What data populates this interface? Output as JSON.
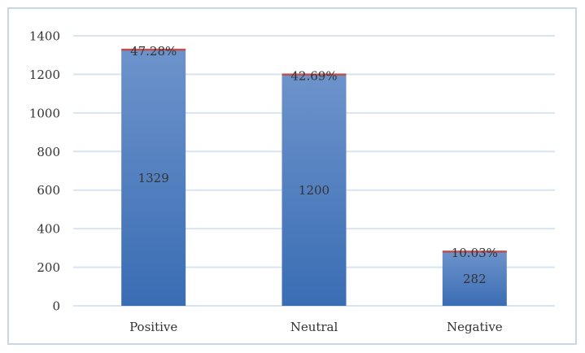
{
  "chart_data": {
    "type": "bar",
    "categories": [
      "Positive",
      "Neutral",
      "Negative"
    ],
    "series": [
      {
        "values": [
          1329,
          1200,
          282
        ],
        "percent_labels": [
          "47.28%",
          "42.69%",
          "10.03%"
        ]
      }
    ],
    "ylim": [
      0,
      1400
    ],
    "yticks": [
      0,
      200,
      400,
      600,
      800,
      1000,
      1200,
      1400
    ],
    "grid": true,
    "legend": "none",
    "colors": {
      "bar_top": "#6d93cb",
      "bar_bottom": "#3a6db4",
      "cap": "#c0504d",
      "grid": "#d9e4f1",
      "text": "#333333"
    }
  }
}
